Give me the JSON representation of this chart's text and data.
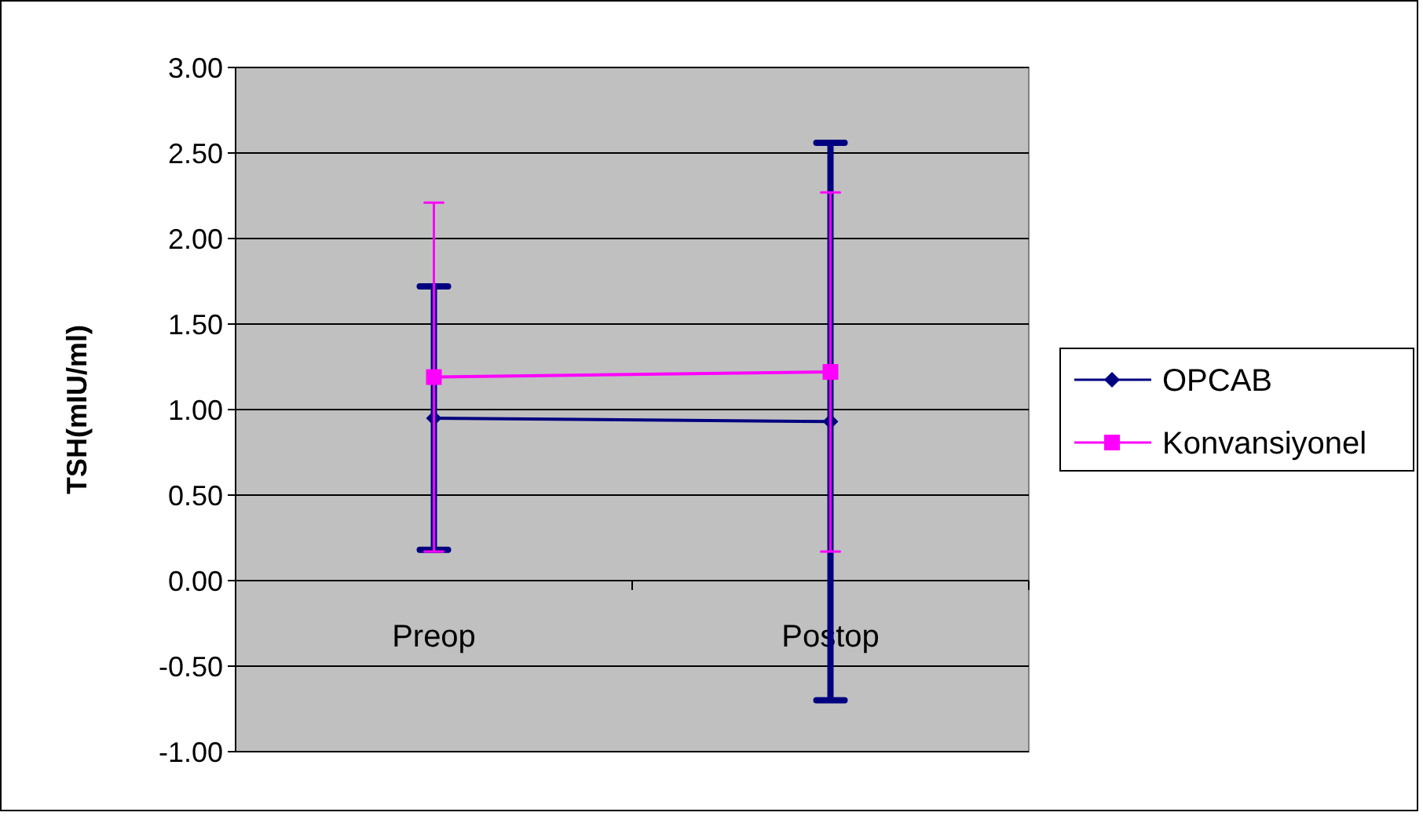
{
  "chart_data": {
    "type": "line",
    "ylabel": "TSH(mIU/ml)",
    "categories": [
      "Preop",
      "Postop"
    ],
    "series": [
      {
        "name": "OPCAB",
        "color": "#000080",
        "values": [
          0.95,
          0.93
        ],
        "errors": [
          0.77,
          1.63
        ],
        "marker": "diamond"
      },
      {
        "name": "Konvansiyonel",
        "color": "#ff00ff",
        "values": [
          1.19,
          1.22
        ],
        "errors": [
          1.02,
          1.05
        ],
        "marker": "square"
      }
    ],
    "ylim": [
      -1,
      3
    ],
    "yticks": [
      {
        "value": -1,
        "label": "-1.00"
      },
      {
        "value": -0.5,
        "label": "-0.50"
      },
      {
        "value": 0,
        "label": "0.00"
      },
      {
        "value": 0.5,
        "label": "0.50"
      },
      {
        "value": 1,
        "label": "1.00"
      },
      {
        "value": 1.5,
        "label": "1.50"
      },
      {
        "value": 2,
        "label": "2.00"
      },
      {
        "value": 2.5,
        "label": "2.50"
      },
      {
        "value": 3,
        "label": "3.00"
      }
    ],
    "grid": "y",
    "legend": "right"
  }
}
